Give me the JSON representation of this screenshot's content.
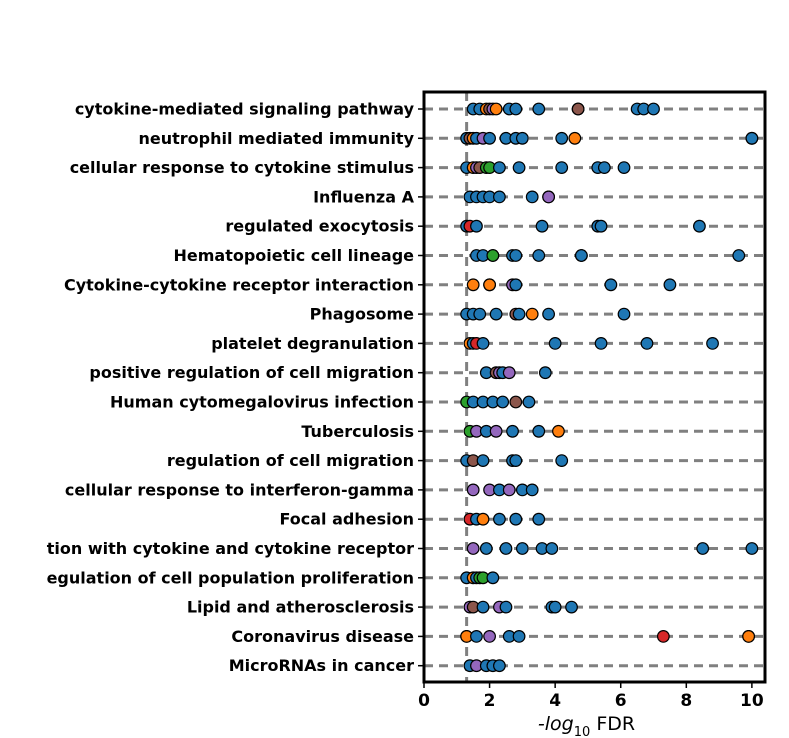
{
  "chart_data": {
    "type": "scatter",
    "xlabel_main": "-log",
    "xlabel_sub": "10",
    "xlabel_tail": " FDR",
    "xlim": [
      0,
      10.4
    ],
    "xticks": [
      0,
      2,
      4,
      6,
      8,
      10
    ],
    "threshold_x": 1.3,
    "grid": "horizontal dashed",
    "colors": {
      "blue": "#1f77b4",
      "orange": "#ff7f0e",
      "green": "#2ca02c",
      "red": "#d62728",
      "purple": "#9467bd",
      "brown": "#8c564b"
    },
    "categories": [
      "cytokine-mediated signaling pathway",
      "neutrophil mediated immunity",
      "cellular response to cytokine stimulus",
      "Influenza A",
      "regulated exocytosis",
      "Hematopoietic cell lineage",
      "Cytokine-cytokine receptor interaction",
      "Phagosome",
      "platelet degranulation",
      "positive regulation of cell migration",
      "Human cytomegalovirus infection",
      "Tuberculosis",
      "regulation of cell migration",
      "cellular response to interferon-gamma",
      "Focal adhesion",
      "tion with cytokine and cytokine receptor",
      "egulation of cell population proliferation",
      "Lipid and atherosclerosis",
      "Coronavirus disease",
      "MicroRNAs in cancer"
    ],
    "points": [
      [
        [
          1.5,
          "b"
        ],
        [
          1.7,
          "b"
        ],
        [
          1.9,
          "o"
        ],
        [
          2.0,
          "br"
        ],
        [
          2.1,
          "p"
        ],
        [
          2.2,
          "o"
        ],
        [
          2.6,
          "b"
        ],
        [
          2.8,
          "b"
        ],
        [
          3.5,
          "b"
        ],
        [
          4.7,
          "p"
        ],
        [
          4.7,
          "br"
        ],
        [
          6.5,
          "b"
        ],
        [
          6.7,
          "b"
        ],
        [
          7.0,
          "b"
        ]
      ],
      [
        [
          1.3,
          "b"
        ],
        [
          1.4,
          "br"
        ],
        [
          1.5,
          "o"
        ],
        [
          1.6,
          "b"
        ],
        [
          1.8,
          "p"
        ],
        [
          2.0,
          "b"
        ],
        [
          2.5,
          "b"
        ],
        [
          2.8,
          "b"
        ],
        [
          3.0,
          "b"
        ],
        [
          4.2,
          "b"
        ],
        [
          4.6,
          "o"
        ],
        [
          10.0,
          "b"
        ],
        [
          10.0,
          "b"
        ]
      ],
      [
        [
          1.3,
          "b"
        ],
        [
          1.5,
          "o"
        ],
        [
          1.6,
          "p"
        ],
        [
          1.7,
          "br"
        ],
        [
          1.9,
          "g"
        ],
        [
          2.0,
          "g"
        ],
        [
          2.3,
          "b"
        ],
        [
          2.9,
          "b"
        ],
        [
          4.2,
          "b"
        ],
        [
          5.3,
          "b"
        ],
        [
          5.5,
          "b"
        ],
        [
          6.1,
          "b"
        ]
      ],
      [
        [
          1.4,
          "b"
        ],
        [
          1.6,
          "b"
        ],
        [
          1.8,
          "b"
        ],
        [
          2.0,
          "b"
        ],
        [
          2.3,
          "b"
        ],
        [
          3.3,
          "b"
        ],
        [
          3.8,
          "br"
        ],
        [
          3.8,
          "p"
        ]
      ],
      [
        [
          1.3,
          "b"
        ],
        [
          1.4,
          "r"
        ],
        [
          1.6,
          "b"
        ],
        [
          3.6,
          "b"
        ],
        [
          5.3,
          "b"
        ],
        [
          5.4,
          "b"
        ],
        [
          8.4,
          "b"
        ]
      ],
      [
        [
          1.6,
          "b"
        ],
        [
          1.8,
          "b"
        ],
        [
          2.1,
          "o"
        ],
        [
          2.1,
          "g"
        ],
        [
          2.7,
          "b"
        ],
        [
          2.8,
          "b"
        ],
        [
          3.5,
          "b"
        ],
        [
          4.8,
          "p"
        ],
        [
          4.8,
          "b"
        ],
        [
          9.6,
          "b"
        ]
      ],
      [
        [
          1.5,
          "o"
        ],
        [
          2.0,
          "b"
        ],
        [
          2.0,
          "o"
        ],
        [
          2.7,
          "p"
        ],
        [
          2.8,
          "b"
        ],
        [
          5.7,
          "b"
        ],
        [
          7.5,
          "b"
        ]
      ],
      [
        [
          1.3,
          "b"
        ],
        [
          1.5,
          "b"
        ],
        [
          1.7,
          "b"
        ],
        [
          2.2,
          "b"
        ],
        [
          2.8,
          "br"
        ],
        [
          2.9,
          "b"
        ],
        [
          3.3,
          "o"
        ],
        [
          3.8,
          "b"
        ],
        [
          6.1,
          "b"
        ]
      ],
      [
        [
          1.4,
          "o"
        ],
        [
          1.5,
          "b"
        ],
        [
          1.6,
          "r"
        ],
        [
          1.8,
          "b"
        ],
        [
          4.0,
          "b"
        ],
        [
          5.4,
          "b"
        ],
        [
          6.8,
          "b"
        ],
        [
          8.8,
          "b"
        ]
      ],
      [
        [
          1.9,
          "b"
        ],
        [
          2.2,
          "br"
        ],
        [
          2.3,
          "p"
        ],
        [
          2.4,
          "b"
        ],
        [
          2.6,
          "p"
        ],
        [
          3.7,
          "b"
        ]
      ],
      [
        [
          1.3,
          "g"
        ],
        [
          1.5,
          "b"
        ],
        [
          1.8,
          "b"
        ],
        [
          2.1,
          "b"
        ],
        [
          2.4,
          "b"
        ],
        [
          2.8,
          "br"
        ],
        [
          3.2,
          "b"
        ]
      ],
      [
        [
          1.4,
          "g"
        ],
        [
          1.6,
          "p"
        ],
        [
          1.9,
          "b"
        ],
        [
          2.2,
          "p"
        ],
        [
          2.7,
          "b"
        ],
        [
          3.5,
          "b"
        ],
        [
          4.1,
          "o"
        ]
      ],
      [
        [
          1.3,
          "b"
        ],
        [
          1.5,
          "br"
        ],
        [
          1.8,
          "b"
        ],
        [
          2.7,
          "b"
        ],
        [
          2.8,
          "b"
        ],
        [
          4.2,
          "b"
        ]
      ],
      [
        [
          1.5,
          "p"
        ],
        [
          2.0,
          "p"
        ],
        [
          2.3,
          "b"
        ],
        [
          2.6,
          "p"
        ],
        [
          3.0,
          "b"
        ],
        [
          3.3,
          "b"
        ]
      ],
      [
        [
          1.4,
          "r"
        ],
        [
          1.6,
          "b"
        ],
        [
          1.8,
          "o"
        ],
        [
          2.3,
          "b"
        ],
        [
          2.8,
          "b"
        ],
        [
          3.5,
          "b"
        ]
      ],
      [
        [
          1.5,
          "p"
        ],
        [
          1.9,
          "b"
        ],
        [
          2.5,
          "b"
        ],
        [
          3.0,
          "b"
        ],
        [
          3.6,
          "b"
        ],
        [
          3.9,
          "b"
        ],
        [
          8.5,
          "b"
        ],
        [
          10.0,
          "b"
        ]
      ],
      [
        [
          1.3,
          "b"
        ],
        [
          1.5,
          "o"
        ],
        [
          1.6,
          "b"
        ],
        [
          1.7,
          "g"
        ],
        [
          1.8,
          "g"
        ],
        [
          2.1,
          "b"
        ]
      ],
      [
        [
          1.4,
          "p"
        ],
        [
          1.5,
          "br"
        ],
        [
          1.8,
          "b"
        ],
        [
          2.3,
          "p"
        ],
        [
          2.5,
          "b"
        ],
        [
          3.9,
          "b"
        ],
        [
          4.0,
          "b"
        ],
        [
          4.5,
          "b"
        ]
      ],
      [
        [
          1.3,
          "g"
        ],
        [
          1.3,
          "o"
        ],
        [
          1.6,
          "b"
        ],
        [
          2.0,
          "p"
        ],
        [
          2.6,
          "b"
        ],
        [
          2.9,
          "b"
        ],
        [
          7.3,
          "r"
        ],
        [
          9.9,
          "g"
        ],
        [
          9.9,
          "o"
        ]
      ],
      [
        [
          1.4,
          "b"
        ],
        [
          1.6,
          "p"
        ],
        [
          1.9,
          "b"
        ],
        [
          2.1,
          "b"
        ],
        [
          2.3,
          "b"
        ]
      ]
    ]
  }
}
